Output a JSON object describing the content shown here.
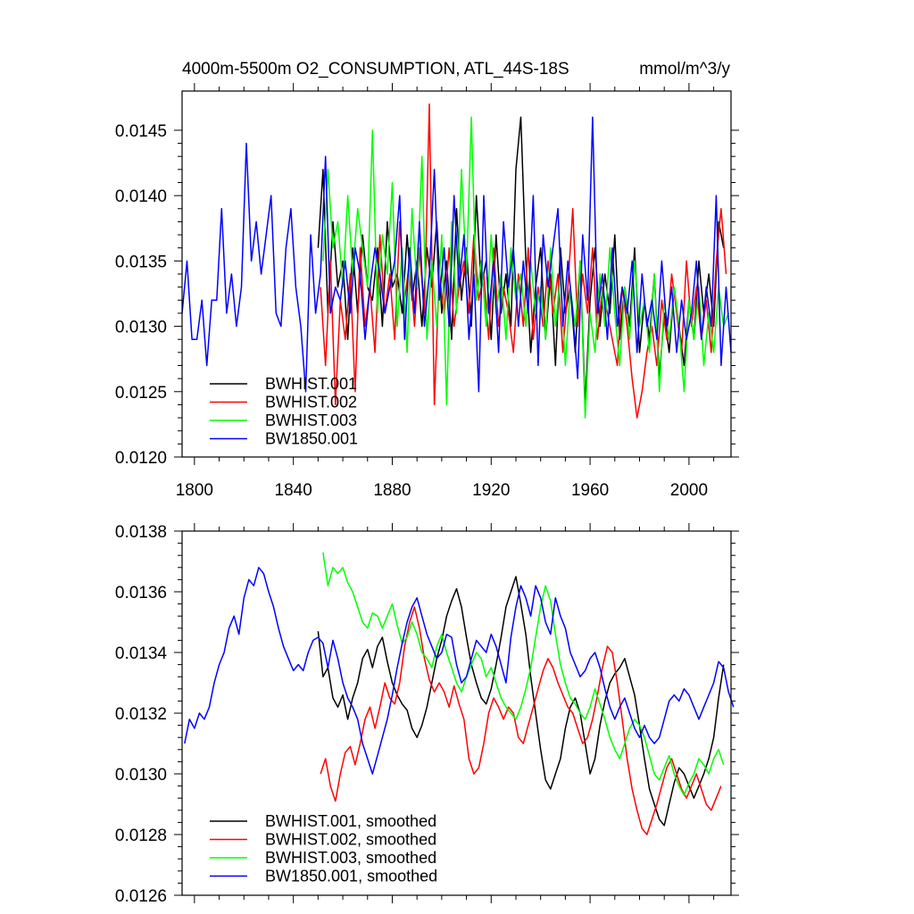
{
  "title": {
    "left": "4000m-5500m O2_CONSUMPTION, ATL_44S-18S",
    "right": "mmol/m^3/y"
  },
  "chart_data": [
    {
      "type": "line",
      "xlim": [
        1795,
        2017
      ],
      "ylim": [
        0.012,
        0.0148
      ],
      "xticks": [
        1800,
        1840,
        1880,
        1920,
        1960,
        2000
      ],
      "xtick_labels": [
        "1800",
        "1840",
        "1880",
        "1920",
        "1960",
        "2000"
      ],
      "yticks": [
        0.012,
        0.0125,
        0.013,
        0.0135,
        0.014,
        0.0145
      ],
      "ytick_labels": [
        "0.0120",
        "0.0125",
        "0.0130",
        "0.0135",
        "0.0140",
        "0.0145"
      ],
      "legend_position": "bottom-left",
      "grid": false,
      "series": [
        {
          "name": "BWHIST.001",
          "color": "#000000",
          "x_start": 1850,
          "x_step": 2,
          "values": [
            0.0136,
            0.0142,
            0.0131,
            0.0138,
            0.0133,
            0.0135,
            0.0129,
            0.0136,
            0.0131,
            0.0137,
            0.0133,
            0.0132,
            0.0136,
            0.013,
            0.0138,
            0.0133,
            0.0134,
            0.0131,
            0.0137,
            0.0132,
            0.0135,
            0.013,
            0.0136,
            0.0133,
            0.0138,
            0.0131,
            0.0135,
            0.0129,
            0.0139,
            0.0132,
            0.0136,
            0.013,
            0.014,
            0.0133,
            0.0135,
            0.0129,
            0.0137,
            0.0131,
            0.0134,
            0.013,
            0.0142,
            0.0146,
            0.0135,
            0.0128,
            0.0133,
            0.0136,
            0.0129,
            0.0134,
            0.0127,
            0.0136,
            0.0131,
            0.0133,
            0.0128,
            0.0135,
            0.0124,
            0.0132,
            0.0136,
            0.013,
            0.0134,
            0.0131,
            0.0137,
            0.0129,
            0.0133,
            0.013,
            0.0136,
            0.0128,
            0.0132,
            0.0129,
            0.0134,
            0.0126,
            0.0131,
            0.0128,
            0.0133,
            0.013,
            0.0127,
            0.0132,
            0.0129,
            0.0135,
            0.0131,
            0.0134,
            0.013,
            0.0138,
            0.0136
          ]
        },
        {
          "name": "BWHIST.002",
          "color": "#ff0000",
          "x_start": 1851,
          "x_step": 2,
          "values": [
            0.0133,
            0.0127,
            0.0135,
            0.0124,
            0.0132,
            0.0129,
            0.0134,
            0.0125,
            0.0136,
            0.013,
            0.0133,
            0.0128,
            0.0137,
            0.0131,
            0.0134,
            0.0129,
            0.0138,
            0.0132,
            0.0135,
            0.013,
            0.0136,
            0.0131,
            0.0147,
            0.0124,
            0.0134,
            0.0131,
            0.0136,
            0.013,
            0.0133,
            0.0135,
            0.0131,
            0.0137,
            0.0132,
            0.0134,
            0.0129,
            0.0136,
            0.013,
            0.0133,
            0.0131,
            0.0128,
            0.0134,
            0.013,
            0.0136,
            0.0129,
            0.0133,
            0.013,
            0.0135,
            0.0131,
            0.0134,
            0.0128,
            0.0133,
            0.0139,
            0.013,
            0.0134,
            0.0131,
            0.0136,
            0.0129,
            0.0133,
            0.0131,
            0.0129,
            0.0127,
            0.0133,
            0.013,
            0.0126,
            0.0123,
            0.0125,
            0.0128,
            0.013,
            0.0127,
            0.0132,
            0.0129,
            0.0134,
            0.0131,
            0.0128,
            0.0135,
            0.013,
            0.0133,
            0.0129,
            0.0132,
            0.0128,
            0.0135,
            0.0139,
            0.0134
          ]
        },
        {
          "name": "BWHIST.003",
          "color": "#00ff00",
          "x_start": 1852,
          "x_step": 2,
          "values": [
            0.0135,
            0.0142,
            0.0136,
            0.0138,
            0.0133,
            0.014,
            0.0134,
            0.0139,
            0.0136,
            0.0133,
            0.0145,
            0.0131,
            0.0137,
            0.0134,
            0.0141,
            0.013,
            0.0136,
            0.0128,
            0.0139,
            0.0133,
            0.0143,
            0.0129,
            0.0135,
            0.013,
            0.0137,
            0.0124,
            0.0138,
            0.0131,
            0.0142,
            0.0134,
            0.0146,
            0.0132,
            0.0135,
            0.013,
            0.0137,
            0.0131,
            0.0134,
            0.0129,
            0.0136,
            0.0132,
            0.0134,
            0.013,
            0.0135,
            0.0131,
            0.0133,
            0.0129,
            0.0136,
            0.013,
            0.0134,
            0.0127,
            0.0133,
            0.013,
            0.0135,
            0.0123,
            0.0131,
            0.0128,
            0.0134,
            0.013,
            0.0136,
            0.0131,
            0.0127,
            0.0133,
            0.0129,
            0.0135,
            0.013,
            0.0132,
            0.0128,
            0.0134,
            0.0125,
            0.0132,
            0.0129,
            0.0133,
            0.013,
            0.0125,
            0.0132,
            0.0129,
            0.0133,
            0.0127,
            0.0131,
            0.0128,
            0.0133,
            0.013,
            0.0131
          ]
        },
        {
          "name": "BW1850.001",
          "color": "#0000ff",
          "x_start": 1795,
          "x_step": 2,
          "values": [
            0.0131,
            0.0135,
            0.0129,
            0.0129,
            0.0132,
            0.0127,
            0.0132,
            0.0132,
            0.0139,
            0.0131,
            0.0134,
            0.013,
            0.0133,
            0.0144,
            0.0135,
            0.0138,
            0.0134,
            0.0137,
            0.014,
            0.0131,
            0.013,
            0.0136,
            0.0139,
            0.0133,
            0.013,
            0.0125,
            0.0137,
            0.0131,
            0.0134,
            0.0143,
            0.0131,
            0.0133,
            0.0132,
            0.0135,
            0.0131,
            0.0136,
            0.0134,
            0.0129,
            0.0133,
            0.0136,
            0.0134,
            0.0131,
            0.0133,
            0.0135,
            0.014,
            0.0129,
            0.0136,
            0.0131,
            0.0138,
            0.013,
            0.0134,
            0.0142,
            0.0132,
            0.0136,
            0.013,
            0.014,
            0.0133,
            0.0137,
            0.0129,
            0.0134,
            0.0125,
            0.014,
            0.0131,
            0.0135,
            0.0128,
            0.0138,
            0.0133,
            0.0136,
            0.013,
            0.0135,
            0.0131,
            0.014,
            0.0127,
            0.0137,
            0.0133,
            0.0136,
            0.0139,
            0.013,
            0.0135,
            0.0131,
            0.0126,
            0.0137,
            0.0132,
            0.0146,
            0.0131,
            0.0134,
            0.0129,
            0.0136,
            0.013,
            0.0133,
            0.0131,
            0.0135,
            0.0128,
            0.0134,
            0.013,
            0.0132,
            0.0129,
            0.0135,
            0.013,
            0.0133,
            0.0128,
            0.0132,
            0.0129,
            0.0131,
            0.0135,
            0.0129,
            0.0133,
            0.013,
            0.014,
            0.0127,
            0.0133,
            0.0128
          ]
        }
      ]
    },
    {
      "type": "line",
      "xlim": [
        1795,
        2017
      ],
      "ylim": [
        0.0126,
        0.0138
      ],
      "xticks": [
        1800,
        1840,
        1880,
        1920,
        1960,
        2000
      ],
      "yticks": [
        0.0126,
        0.0128,
        0.013,
        0.0132,
        0.0134,
        0.0136,
        0.0138
      ],
      "ytick_labels": [
        "0.0126",
        "0.0128",
        "0.0130",
        "0.0132",
        "0.0134",
        "0.0136",
        "0.0138"
      ],
      "legend_position": "bottom-left",
      "grid": false,
      "series": [
        {
          "name": "BWHIST.001, smoothed",
          "color": "#000000",
          "x_start": 1850,
          "x_step": 2,
          "values": [
            0.01347,
            0.01332,
            0.01335,
            0.01325,
            0.01322,
            0.01326,
            0.01318,
            0.01325,
            0.0133,
            0.01338,
            0.01341,
            0.01335,
            0.01342,
            0.01345,
            0.01337,
            0.0133,
            0.01326,
            0.01323,
            0.01321,
            0.01315,
            0.01312,
            0.01316,
            0.01322,
            0.0133,
            0.01338,
            0.01344,
            0.01352,
            0.01357,
            0.01361,
            0.01355,
            0.01345,
            0.01336,
            0.0133,
            0.01325,
            0.01323,
            0.01328,
            0.01336,
            0.01345,
            0.01355,
            0.0136,
            0.01365,
            0.01356,
            0.01346,
            0.01332,
            0.0132,
            0.01308,
            0.01298,
            0.01295,
            0.013,
            0.01305,
            0.01315,
            0.01322,
            0.01325,
            0.0132,
            0.0131,
            0.013,
            0.01305,
            0.01316,
            0.01324,
            0.0133,
            0.01333,
            0.01335,
            0.01338,
            0.01332,
            0.01326,
            0.01316,
            0.01305,
            0.01295,
            0.0129,
            0.01285,
            0.01283,
            0.0129,
            0.01297,
            0.01302,
            0.013,
            0.01296,
            0.01292,
            0.01296,
            0.013,
            0.01305,
            0.01312,
            0.01325,
            0.01336
          ]
        },
        {
          "name": "BWHIST.002, smoothed",
          "color": "#ff0000",
          "x_start": 1851,
          "x_step": 2,
          "values": [
            0.013,
            0.01305,
            0.01296,
            0.01291,
            0.013,
            0.01307,
            0.01309,
            0.01303,
            0.0131,
            0.01318,
            0.01322,
            0.01315,
            0.01322,
            0.0133,
            0.01325,
            0.01323,
            0.0133,
            0.01342,
            0.0135,
            0.01355,
            0.01348,
            0.01338,
            0.01331,
            0.01327,
            0.0133,
            0.01327,
            0.01322,
            0.01329,
            0.01323,
            0.01318,
            0.01305,
            0.013,
            0.01302,
            0.0131,
            0.0132,
            0.01325,
            0.01322,
            0.01318,
            0.01322,
            0.0132,
            0.01312,
            0.0131,
            0.01316,
            0.01322,
            0.01328,
            0.01334,
            0.01338,
            0.01335,
            0.0133,
            0.01326,
            0.01322,
            0.0132,
            0.01315,
            0.0131,
            0.01312,
            0.01318,
            0.01326,
            0.01335,
            0.01342,
            0.0134,
            0.0133,
            0.01318,
            0.01305,
            0.01295,
            0.01288,
            0.01282,
            0.0128,
            0.01285,
            0.0129,
            0.01296,
            0.01302,
            0.01305,
            0.013,
            0.01295,
            0.01292,
            0.01296,
            0.013,
            0.01295,
            0.0129,
            0.01288,
            0.01292,
            0.01296
          ]
        },
        {
          "name": "BWHIST.003, smoothed",
          "color": "#00ff00",
          "x_start": 1852,
          "x_step": 2,
          "values": [
            0.01373,
            0.01362,
            0.01368,
            0.01366,
            0.01368,
            0.01363,
            0.0136,
            0.01355,
            0.0135,
            0.01348,
            0.01353,
            0.01352,
            0.01348,
            0.01352,
            0.01356,
            0.01349,
            0.01343,
            0.01345,
            0.0135,
            0.01346,
            0.0134,
            0.01338,
            0.01335,
            0.01342,
            0.01346,
            0.0134,
            0.01335,
            0.0133,
            0.01327,
            0.01332,
            0.01336,
            0.0134,
            0.01338,
            0.01332,
            0.01335,
            0.0133,
            0.01325,
            0.01322,
            0.0132,
            0.01318,
            0.01322,
            0.01328,
            0.01335,
            0.01345,
            0.01355,
            0.01362,
            0.01357,
            0.01346,
            0.01336,
            0.0133,
            0.01325,
            0.01323,
            0.0132,
            0.01318,
            0.01322,
            0.01328,
            0.01323,
            0.01318,
            0.01312,
            0.01308,
            0.01305,
            0.0131,
            0.01315,
            0.01318,
            0.01316,
            0.01312,
            0.01306,
            0.013,
            0.01298,
            0.01302,
            0.01306,
            0.013,
            0.01296,
            0.01293,
            0.01297,
            0.013,
            0.01305,
            0.01303,
            0.013,
            0.01305,
            0.01308,
            0.01303
          ]
        },
        {
          "name": "BW1850.001, smoothed",
          "color": "#0000ff",
          "x_start": 1796,
          "x_step": 2,
          "values": [
            0.0131,
            0.01318,
            0.01315,
            0.0132,
            0.01318,
            0.01322,
            0.0133,
            0.01336,
            0.0134,
            0.01348,
            0.01352,
            0.01346,
            0.01358,
            0.01364,
            0.01362,
            0.01368,
            0.01366,
            0.0136,
            0.01355,
            0.01348,
            0.01342,
            0.01338,
            0.01334,
            0.01336,
            0.01334,
            0.0134,
            0.01344,
            0.01345,
            0.01343,
            0.01335,
            0.01344,
            0.01338,
            0.0133,
            0.01325,
            0.01322,
            0.01318,
            0.0131,
            0.01305,
            0.013,
            0.01306,
            0.01312,
            0.01318,
            0.01326,
            0.01335,
            0.01343,
            0.0135,
            0.01355,
            0.01358,
            0.01352,
            0.01346,
            0.01342,
            0.01338,
            0.0134,
            0.01346,
            0.01345,
            0.01336,
            0.0133,
            0.01332,
            0.01338,
            0.01344,
            0.01342,
            0.0134,
            0.01346,
            0.01342,
            0.01336,
            0.0133,
            0.01345,
            0.01355,
            0.01362,
            0.01358,
            0.01352,
            0.01362,
            0.01358,
            0.0135,
            0.01346,
            0.01358,
            0.01352,
            0.01348,
            0.0134,
            0.01336,
            0.01332,
            0.01334,
            0.01338,
            0.0134,
            0.01335,
            0.01328,
            0.01322,
            0.01318,
            0.01322,
            0.01325,
            0.0132,
            0.01315,
            0.01312,
            0.01316,
            0.01312,
            0.0131,
            0.01312,
            0.01318,
            0.01324,
            0.01326,
            0.01324,
            0.01328,
            0.01326,
            0.01322,
            0.01318,
            0.01322,
            0.01326,
            0.0133,
            0.01337,
            0.01335,
            0.01327,
            0.01322
          ]
        }
      ]
    }
  ]
}
